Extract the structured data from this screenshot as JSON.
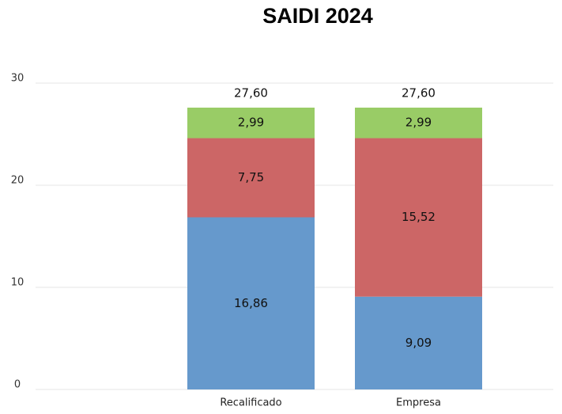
{
  "chart_data": {
    "type": "stacked_bar",
    "title": "SAIDI 2024",
    "categories": [
      "Recalificado",
      "Empresa"
    ],
    "series": [
      {
        "color": "#6699cc",
        "values": [
          16.86,
          9.09
        ],
        "value_labels": [
          "16,86",
          "9,09"
        ]
      },
      {
        "color": "#cc6666",
        "values": [
          7.75,
          15.52
        ],
        "value_labels": [
          "7,75",
          "15,52"
        ]
      },
      {
        "color": "#99cc66",
        "values": [
          2.99,
          2.99
        ],
        "value_labels": [
          "2,99",
          "2,99"
        ]
      }
    ],
    "totals": [
      27.6,
      27.6
    ],
    "total_labels": [
      "27,60",
      "27,60"
    ],
    "ylim": [
      0,
      30
    ],
    "yticks": [
      0,
      10,
      20,
      30
    ],
    "grid": true
  }
}
